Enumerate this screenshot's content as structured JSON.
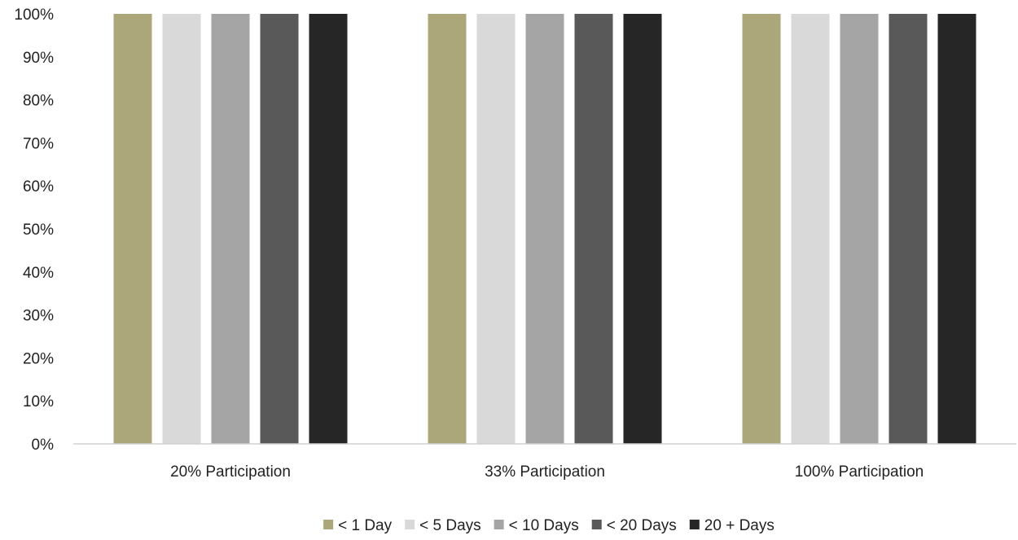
{
  "chart_data": {
    "type": "bar",
    "title": "",
    "xlabel": "",
    "ylabel": "",
    "categories": [
      "20% Participation",
      "33% Participation",
      "100% Participation"
    ],
    "series": [
      {
        "name": "< 1 Day",
        "color": "#ABA77A",
        "values": [
          1.0,
          1.0,
          1.0
        ]
      },
      {
        "name": "< 5 Days",
        "color": "#D9D9D9",
        "values": [
          1.0,
          1.0,
          1.0
        ]
      },
      {
        "name": "< 10 Days",
        "color": "#A5A5A5",
        "values": [
          1.0,
          1.0,
          1.0
        ]
      },
      {
        "name": "< 20 Days",
        "color": "#595959",
        "values": [
          1.0,
          1.0,
          1.0
        ]
      },
      {
        "name": "20 + Days",
        "color": "#262626",
        "values": [
          1.0,
          1.0,
          1.0
        ]
      }
    ],
    "ylim": [
      0,
      1
    ],
    "yticks": [
      "0%",
      "10%",
      "20%",
      "30%",
      "40%",
      "50%",
      "60%",
      "70%",
      "80%",
      "90%",
      "100%"
    ],
    "grid": false,
    "legend_position": "bottom"
  }
}
